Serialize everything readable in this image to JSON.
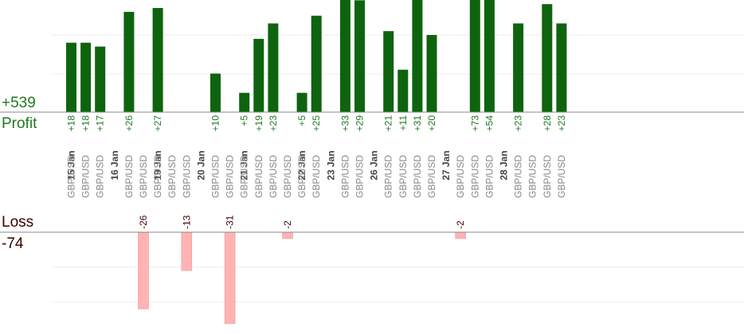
{
  "summary": {
    "profit_total": "+539",
    "profit_label": "Profit",
    "loss_label": "Loss",
    "loss_total": "-74"
  },
  "colors": {
    "profit_bar": "#0e640e",
    "profit_text": "#1e7a1e",
    "loss_bar": "#ffb3b3",
    "loss_text": "#3a0000",
    "axis": "#888888",
    "grid": "#ececec",
    "date_text": "#444444",
    "pair_text": "#888888"
  },
  "chart_data": {
    "type": "bar",
    "series": [
      {
        "name": "Profit",
        "values": [
          18,
          18,
          17,
          0,
          26,
          0,
          27,
          0,
          0,
          0,
          10,
          0,
          5,
          19,
          23,
          0,
          5,
          25,
          0,
          33,
          29,
          0,
          21,
          11,
          31,
          20,
          0,
          0,
          73,
          54,
          0,
          23,
          0,
          28,
          23
        ]
      },
      {
        "name": "Loss",
        "values": [
          0,
          0,
          0,
          0,
          0,
          -26,
          0,
          0,
          -13,
          0,
          0,
          -31,
          0,
          0,
          0,
          -2,
          0,
          0,
          0,
          0,
          0,
          0,
          0,
          0,
          0,
          0,
          0,
          -2,
          0,
          0,
          0,
          0,
          0,
          0,
          0
        ]
      }
    ],
    "trades": [
      {
        "date": "15 Jan",
        "pair": "GBP/USD",
        "label": "+18"
      },
      {
        "date": "",
        "pair": "GBP/USD",
        "label": "+18"
      },
      {
        "date": "",
        "pair": "GBP/USD",
        "label": "+17"
      },
      {
        "date": "16 Jan",
        "pair": "",
        "label": ""
      },
      {
        "date": "",
        "pair": "GBP/USD",
        "label": "+26"
      },
      {
        "date": "",
        "pair": "GBP/USD",
        "label": "-26"
      },
      {
        "date": "19 Jan",
        "pair": "GBP/USD",
        "label": "+27"
      },
      {
        "date": "",
        "pair": "GBP/USD",
        "label": ""
      },
      {
        "date": "",
        "pair": "GBP/USD",
        "label": "-13"
      },
      {
        "date": "20 Jan",
        "pair": "",
        "label": ""
      },
      {
        "date": "",
        "pair": "GBP/USD",
        "label": "+10"
      },
      {
        "date": "",
        "pair": "GBP/USD",
        "label": "-31"
      },
      {
        "date": "21 Jan",
        "pair": "GBP/USD",
        "label": "+5"
      },
      {
        "date": "",
        "pair": "GBP/USD",
        "label": "+19"
      },
      {
        "date": "",
        "pair": "GBP/USD",
        "label": "+23"
      },
      {
        "date": "",
        "pair": "GBP/USD",
        "label": "-2"
      },
      {
        "date": "22 Jan",
        "pair": "GBP/USD",
        "label": "+5"
      },
      {
        "date": "",
        "pair": "GBP/USD",
        "label": "+25"
      },
      {
        "date": "23 Jan",
        "pair": "",
        "label": ""
      },
      {
        "date": "",
        "pair": "GBP/USD",
        "label": "+33"
      },
      {
        "date": "",
        "pair": "GBP/USD",
        "label": "+29"
      },
      {
        "date": "26 Jan",
        "pair": "",
        "label": ""
      },
      {
        "date": "",
        "pair": "GBP/USD",
        "label": "+21"
      },
      {
        "date": "",
        "pair": "GBP/USD",
        "label": "+11"
      },
      {
        "date": "",
        "pair": "GBP/USD",
        "label": "+31"
      },
      {
        "date": "",
        "pair": "GBP/USD",
        "label": "+20"
      },
      {
        "date": "27 Jan",
        "pair": "",
        "label": ""
      },
      {
        "date": "",
        "pair": "GBP/USD",
        "label": "-2"
      },
      {
        "date": "",
        "pair": "GBP/USD",
        "label": "+73"
      },
      {
        "date": "",
        "pair": "GBP/USD",
        "label": "+54"
      },
      {
        "date": "28 Jan",
        "pair": "",
        "label": ""
      },
      {
        "date": "",
        "pair": "GBP/USD",
        "label": "+23"
      },
      {
        "date": "",
        "pair": "GBP/USD",
        "label": ""
      },
      {
        "date": "",
        "pair": "GBP/USD",
        "label": "+28"
      },
      {
        "date": "",
        "pair": "GBP/USD",
        "label": "+23"
      }
    ],
    "title": "",
    "xlabel": "",
    "ylabel": "",
    "profit_ylim": [
      0,
      27
    ],
    "loss_ylim": [
      -31,
      0
    ],
    "grid": true
  }
}
